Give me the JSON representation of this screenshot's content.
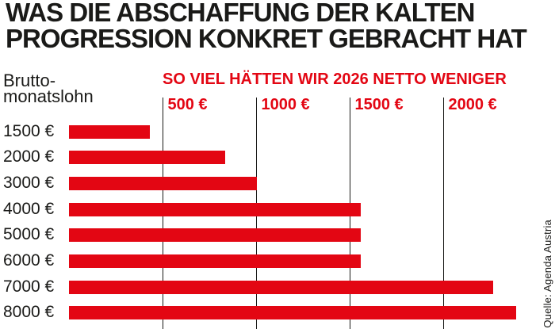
{
  "header": {
    "title_line1": "WAS DIE ABSCHAFFUNG DER KALTEN",
    "title_line2": "PROGRESSION KONKRET GEBRACHT HAT"
  },
  "subtitle": "SO VIEL HÄTTEN WIR 2026 NETTO WENIGER",
  "y_axis": {
    "title_line1": "Brutto-",
    "title_line2": "monatslohn"
  },
  "source": "Quelle: Agenda Austria",
  "colors": {
    "red": "#e30613",
    "ink": "#1a1a18",
    "background": "#ffffff"
  },
  "chart_data": {
    "type": "bar",
    "orientation": "horizontal",
    "title": "WAS DIE ABSCHAFFUNG DER KALTEN PROGRESSION KONKRET GEBRACHT HAT",
    "subtitle": "SO VIEL HÄTTEN WIR 2026 NETTO WENIGER",
    "ylabel": "Brutto-monatslohn",
    "xlabel": "",
    "unit": "€",
    "categories": [
      "1500 €",
      "2000 €",
      "3000 €",
      "4000 €",
      "5000 €",
      "6000 €",
      "7000 €",
      "8000 €"
    ],
    "values": [
      435,
      835,
      1005,
      1560,
      1560,
      1560,
      2270,
      2390
    ],
    "x_ticks": [
      500,
      1000,
      1500,
      2000
    ],
    "x_tick_labels": [
      "500 €",
      "1000 €",
      "1500 €",
      "2000 €"
    ],
    "xlim": [
      0,
      2590
    ],
    "grid": "vertical-lines",
    "legend": false,
    "bar_color": "#e30613",
    "source": "Quelle: Agenda Austria"
  }
}
